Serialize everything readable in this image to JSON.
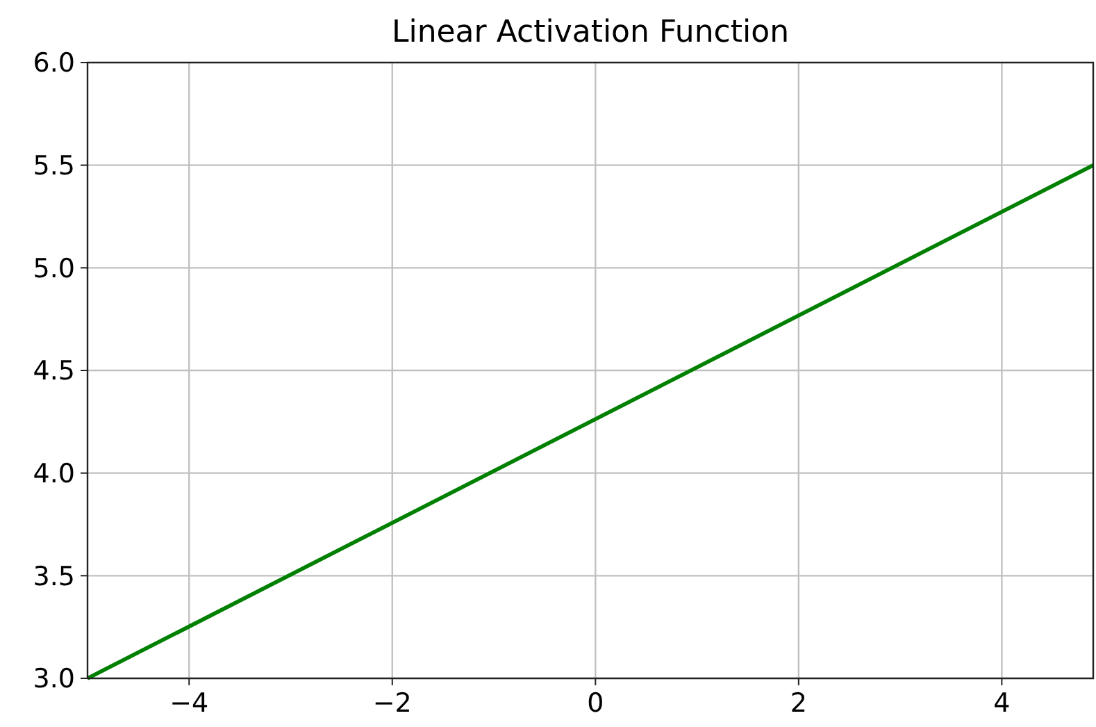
{
  "chart_data": {
    "type": "line",
    "title": "Linear Activation Function",
    "x": [
      -5,
      4.9
    ],
    "series": [
      {
        "color": "#008000",
        "values": [
          3.0,
          5.5
        ]
      }
    ],
    "xlim": [
      -5,
      4.9
    ],
    "xticks": [
      {
        "value": -4,
        "label": "−4"
      },
      {
        "value": -2,
        "label": "−2"
      },
      0,
      2,
      4
    ],
    "ylim": [
      3,
      6
    ],
    "yticks": [
      {
        "value": 3,
        "label": "3.0"
      },
      {
        "value": 3.5,
        "label": "3.5"
      },
      {
        "value": 4,
        "label": "4.0"
      },
      {
        "value": 4.5,
        "label": "4.5"
      },
      {
        "value": 5,
        "label": "5.0"
      },
      {
        "value": 5.5,
        "label": "5.5"
      },
      {
        "value": 6,
        "label": "6.0"
      }
    ],
    "grid": true,
    "marker": "none",
    "line_style": "solid"
  }
}
